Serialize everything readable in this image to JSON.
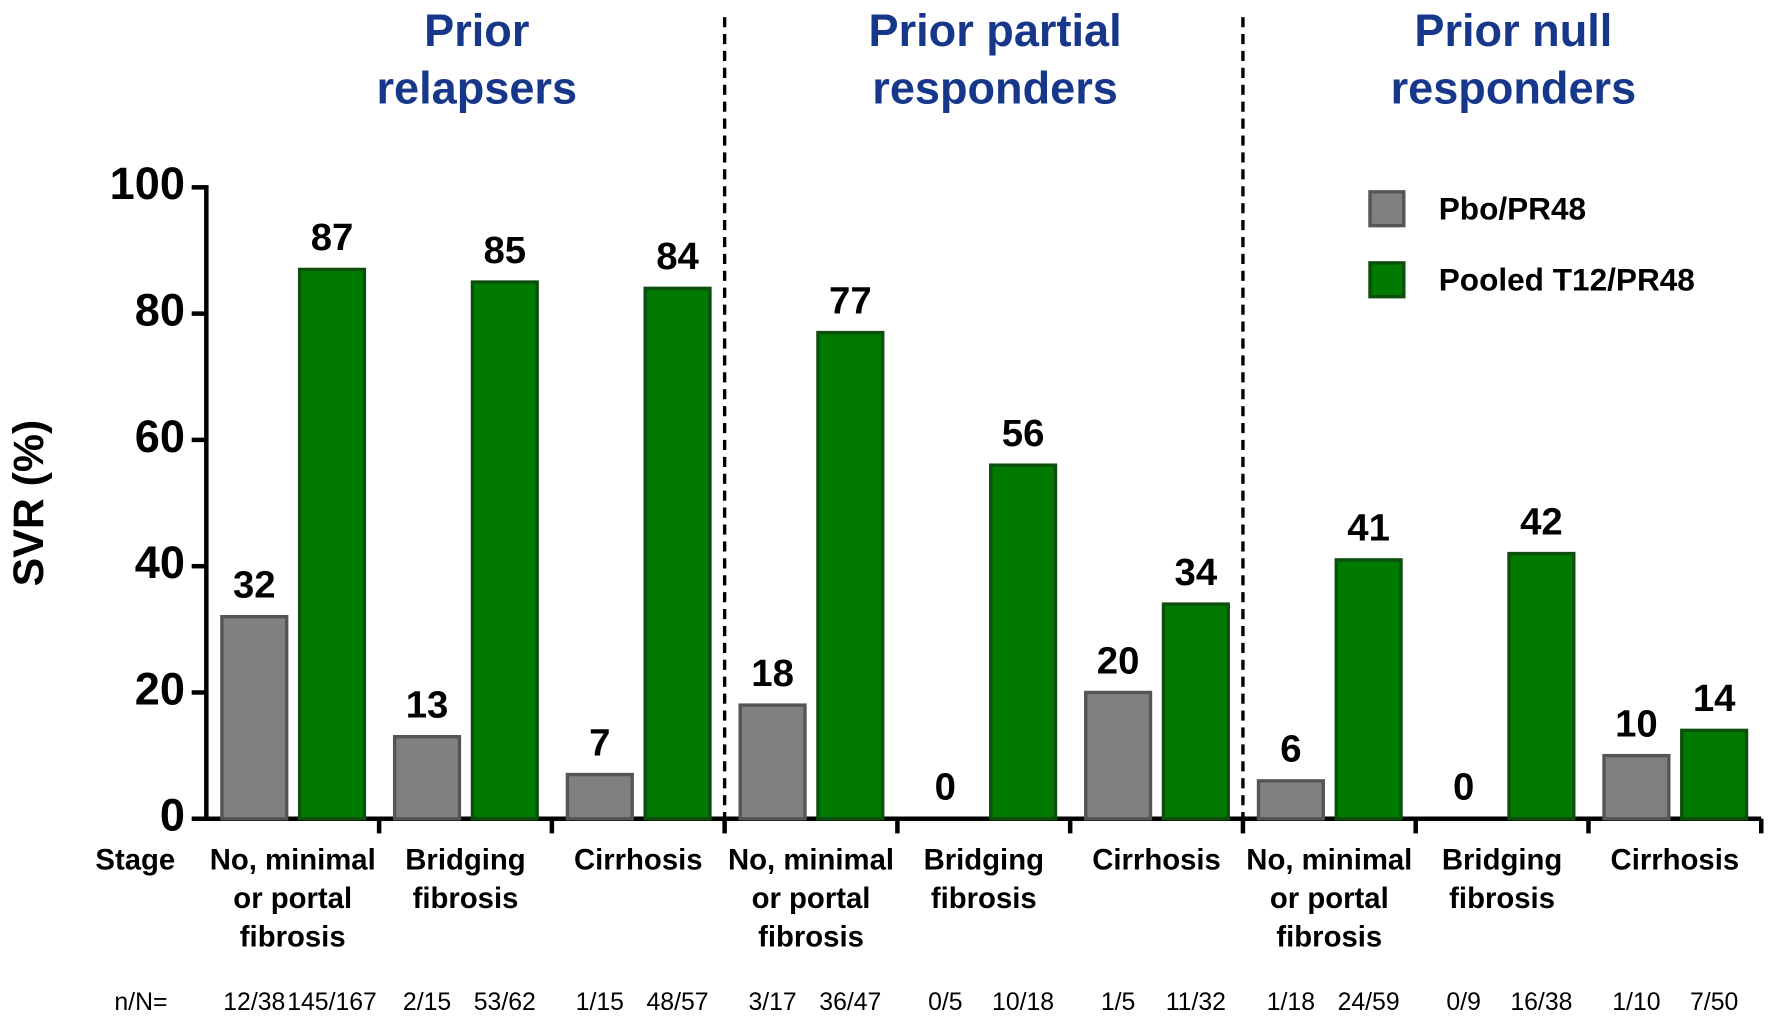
{
  "chart_data": {
    "type": "bar",
    "group_titles": [
      [
        "Prior",
        "relapsers"
      ],
      [
        "Prior partial",
        "responders"
      ],
      [
        "Prior null",
        "responders"
      ]
    ],
    "categories": [
      [
        "No, minimal",
        "or portal",
        "fibrosis"
      ],
      [
        "Bridging",
        "fibrosis"
      ],
      [
        "Cirrhosis"
      ],
      [
        "No, minimal",
        "or portal",
        "fibrosis"
      ],
      [
        "Bridging",
        "fibrosis"
      ],
      [
        "Cirrhosis"
      ],
      [
        "No, minimal",
        "or portal",
        "fibrosis"
      ],
      [
        "Bridging",
        "fibrosis"
      ],
      [
        "Cirrhosis"
      ]
    ],
    "category_axis_label": "Stage",
    "count_label": "n/N=",
    "ylabel": "SVR (%)",
    "ylim": [
      0,
      100
    ],
    "yticks": [
      0,
      20,
      40,
      60,
      80,
      100
    ],
    "legend": "top-right",
    "series": [
      {
        "name": "Pbo/PR48",
        "color": "#808080",
        "edge": "#555555",
        "values": [
          32,
          13,
          7,
          18,
          0,
          20,
          6,
          0,
          10
        ],
        "counts": [
          "12/38",
          "2/15",
          "1/15",
          "3/17",
          "0/5",
          "1/5",
          "1/18",
          "0/9",
          "1/10"
        ]
      },
      {
        "name": "Pooled T12/PR48",
        "color": "#007a00",
        "edge": "#0d4f0d",
        "values": [
          87,
          85,
          84,
          77,
          56,
          34,
          41,
          42,
          14
        ],
        "counts": [
          "145/167",
          "53/62",
          "48/57",
          "36/47",
          "10/18",
          "11/32",
          "24/59",
          "16/38",
          "7/50"
        ]
      }
    ]
  }
}
